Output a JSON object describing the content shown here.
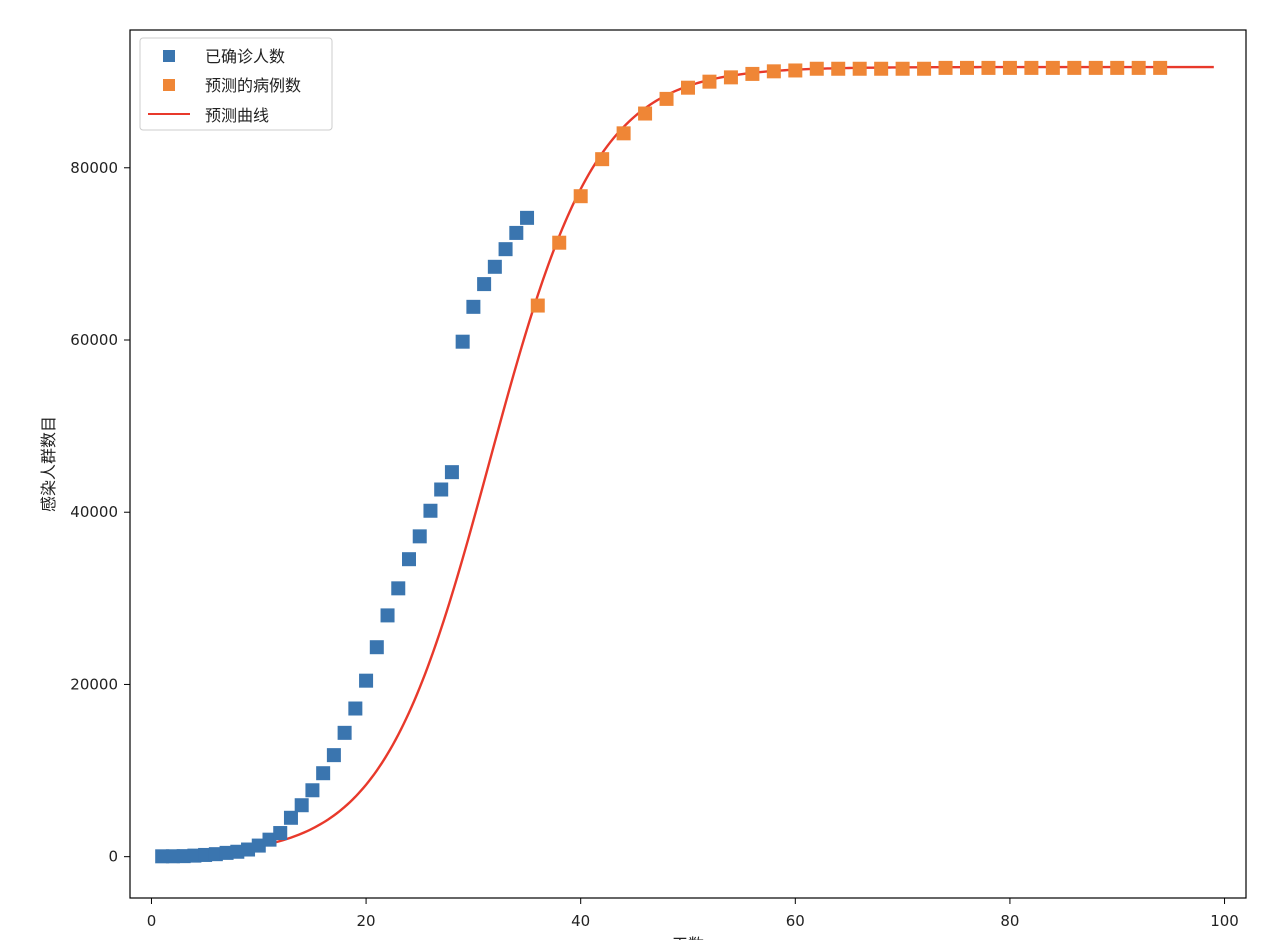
{
  "chart_data": {
    "type": "scatter",
    "title": "",
    "xlabel": "天数",
    "ylabel": "感染人群数目",
    "xlim": [
      -2,
      102
    ],
    "ylim": [
      -4800,
      96000
    ],
    "x_ticks": [
      0,
      20,
      40,
      60,
      80,
      100
    ],
    "y_ticks": [
      0,
      20000,
      40000,
      60000,
      80000
    ],
    "grid": false,
    "legend_position": "top-left",
    "colors": {
      "confirmed": "#3a75af",
      "predicted_points": "#ef8636",
      "predicted_curve": "#e8392b"
    },
    "series": [
      {
        "name": "已确诊人数",
        "marker": "square",
        "x": [
          1,
          2,
          3,
          4,
          5,
          6,
          7,
          8,
          9,
          10,
          11,
          12,
          13,
          14,
          15,
          16,
          17,
          18,
          19,
          20,
          21,
          22,
          23,
          24,
          25,
          26,
          27,
          28,
          29,
          30,
          31,
          32,
          33,
          34,
          35
        ],
        "y": [
          41,
          45,
          62,
          121,
          199,
          291,
          440,
          571,
          830,
          1287,
          1975,
          2744,
          4515,
          5974,
          7711,
          9692,
          11791,
          14380,
          17205,
          20438,
          24324,
          28018,
          31161,
          34546,
          37198,
          40171,
          42638,
          44653,
          59804,
          63851,
          66492,
          68500,
          70548,
          72436,
          74185
        ]
      },
      {
        "name": "预测的病例数",
        "marker": "square",
        "x": [
          36,
          38,
          40,
          42,
          44,
          46,
          48,
          50,
          52,
          54,
          56,
          58,
          60,
          62,
          64,
          66,
          68,
          70,
          72,
          74,
          76,
          78,
          80,
          82,
          84,
          86,
          88,
          90,
          92,
          94
        ],
        "y": [
          64000,
          71300,
          76700,
          81000,
          84000,
          86300,
          88000,
          89300,
          90000,
          90500,
          90900,
          91200,
          91300,
          91500,
          91500,
          91500,
          91500,
          91500,
          91500,
          91600,
          91600,
          91600,
          91600,
          91600,
          91600,
          91600,
          91600,
          91600,
          91600,
          91600
        ]
      },
      {
        "name": "预测曲线",
        "marker": "line",
        "model": {
          "K": 91700,
          "r": 0.2,
          "t0": 31.5
        },
        "x_range": [
          1,
          99
        ]
      }
    ]
  }
}
